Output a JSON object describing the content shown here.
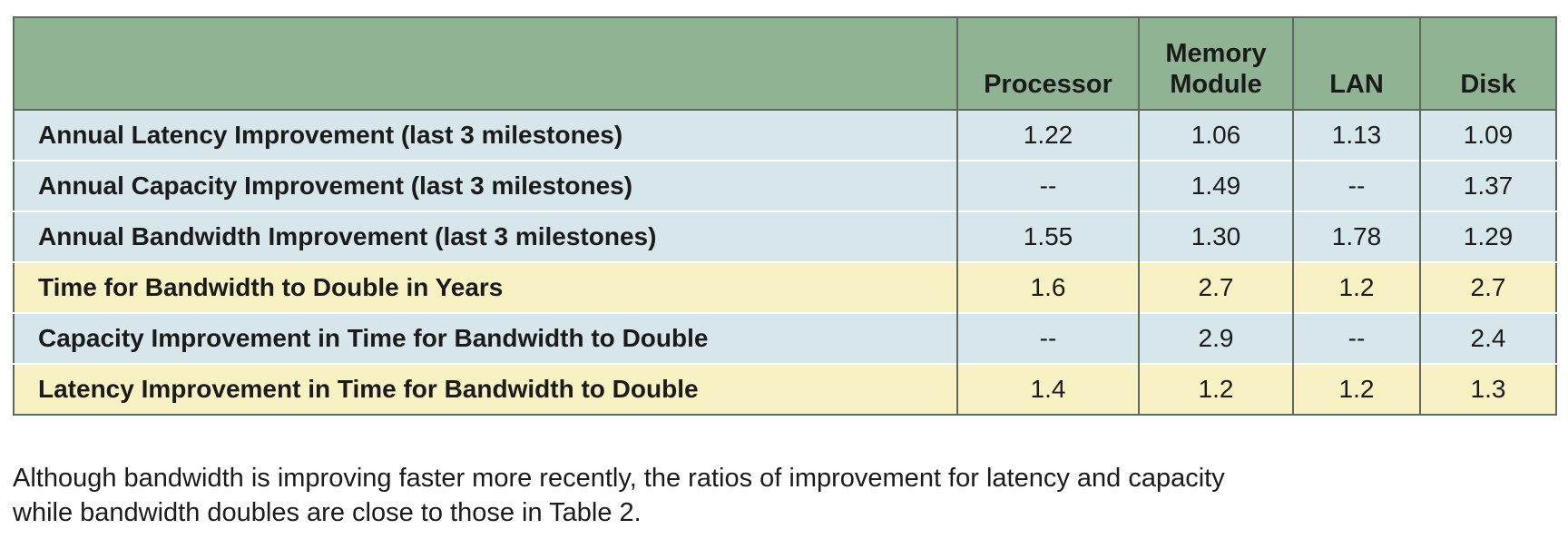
{
  "table": {
    "columns": [
      {
        "line1": "",
        "line2": "Processor"
      },
      {
        "line1": "Memory",
        "line2": "Module"
      },
      {
        "line1": "",
        "line2": "LAN"
      },
      {
        "line1": "",
        "line2": "Disk"
      }
    ],
    "rows": [
      {
        "label": "Annual Latency Improvement  (last 3 milestones)",
        "values": [
          "1.22",
          "1.06",
          "1.13",
          "1.09"
        ],
        "highlight": "blue"
      },
      {
        "label": "Annual Capacity Improvement  (last 3 milestones)",
        "values": [
          "--",
          "1.49",
          "--",
          "1.37"
        ],
        "highlight": "blue"
      },
      {
        "label": "Annual Bandwidth Improvement (last 3 milestones)",
        "values": [
          "1.55",
          "1.30",
          "1.78",
          "1.29"
        ],
        "highlight": "blue"
      },
      {
        "label": "Time for Bandwidth to Double in Years",
        "values": [
          "1.6",
          "2.7",
          "1.2",
          "2.7"
        ],
        "highlight": "yellow"
      },
      {
        "label": "Capacity Improvement in Time for Bandwidth to Double",
        "values": [
          "--",
          "2.9",
          "--",
          "2.4"
        ],
        "highlight": "blue"
      },
      {
        "label": "Latency Improvement in Time for Bandwidth to Double",
        "values": [
          "1.4",
          "1.2",
          "1.2",
          "1.3"
        ],
        "highlight": "yellow"
      }
    ]
  },
  "caption": {
    "line1": "Although bandwidth is improving faster more recently, the ratios of improvement for latency and capacity",
    "line2": "while bandwidth doubles are close to those in Table 2."
  },
  "colors": {
    "header": "#8fb393",
    "row_blue": "#d7e6ea",
    "row_yellow": "#f7f1c3",
    "grid": "#5e6a5e"
  }
}
